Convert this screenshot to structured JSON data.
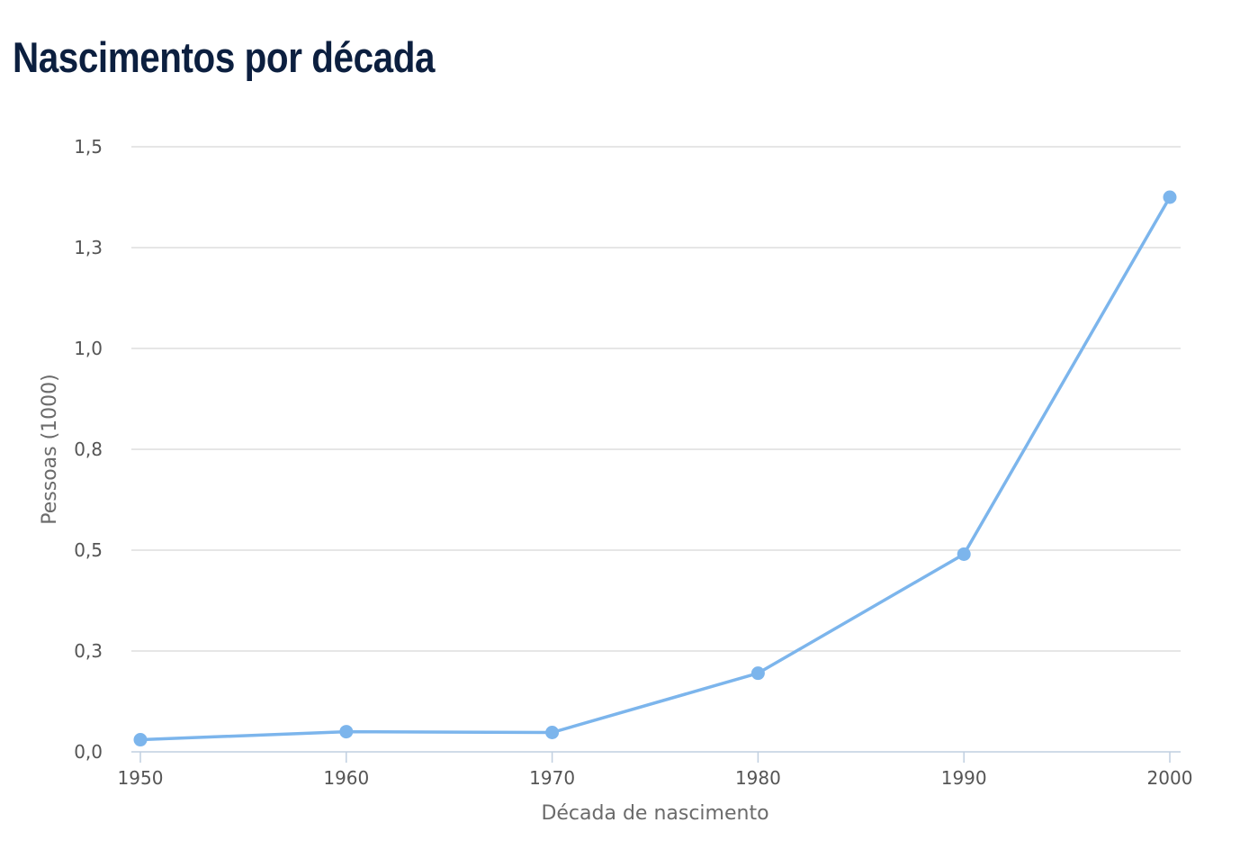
{
  "chart_data": {
    "type": "line",
    "title": "Nascimentos por década",
    "xlabel": "Década de nascimento",
    "ylabel": "Pessoas (1000)",
    "categories": [
      "1950",
      "1960",
      "1970",
      "1980",
      "1990",
      "2000"
    ],
    "series": [
      {
        "name": "Pessoas (1000)",
        "values": [
          0.03,
          0.05,
          0.048,
          0.195,
          0.49,
          1.375
        ],
        "color": "#7cb5ec"
      }
    ],
    "ylim": [
      0,
      1.5
    ],
    "yticks": [
      0,
      0.25,
      0.5,
      0.75,
      1.0,
      1.25,
      1.5
    ],
    "ytick_labels": [
      "0,0",
      "0,3",
      "0,5",
      "0,8",
      "1,0",
      "1,3",
      "1,5"
    ],
    "grid": true,
    "colors": {
      "title": "#0c1f3f",
      "grid": "#d8d8d8",
      "axis": "#c0cfe0",
      "line": "#7cb5ec"
    }
  }
}
